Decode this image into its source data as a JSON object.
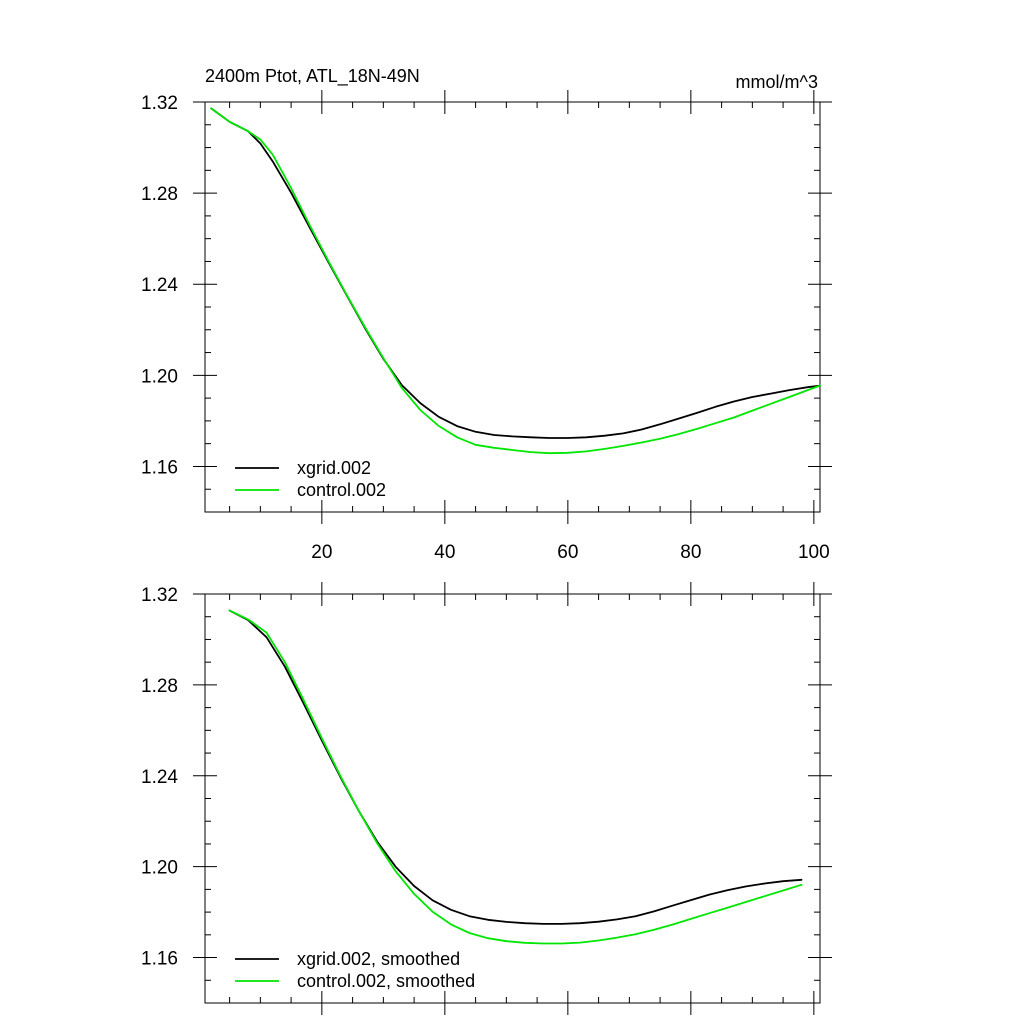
{
  "chart_data": [
    {
      "type": "line",
      "title": "2400m Ptot, ATL_18N-49N",
      "units": "mmol/m^3",
      "xlim": [
        1,
        101
      ],
      "ylim": [
        1.14,
        1.32
      ],
      "xticks": [
        20,
        40,
        60,
        80,
        100
      ],
      "xtick_labels": [
        "20",
        "40",
        "60",
        "80",
        "100"
      ],
      "yticks": [
        1.16,
        1.2,
        1.24,
        1.28,
        1.32
      ],
      "ytick_labels": [
        "1.16",
        "1.20",
        "1.24",
        "1.28",
        "1.32"
      ],
      "legend_position": "bottom-left",
      "series": [
        {
          "name": "xgrid.002",
          "color": "#000000",
          "x": [
            2,
            5,
            8,
            10,
            12,
            15,
            18,
            21,
            24,
            27,
            30,
            33,
            36,
            39,
            42,
            45,
            48,
            51,
            54,
            57,
            60,
            63,
            66,
            69,
            72,
            75,
            78,
            81,
            84,
            87,
            90,
            93,
            96,
            99,
            101
          ],
          "y": [
            1.3172,
            1.3113,
            1.3072,
            1.3018,
            1.294,
            1.2802,
            1.265,
            1.25,
            1.2353,
            1.2208,
            1.2072,
            1.1957,
            1.1878,
            1.1818,
            1.1777,
            1.1752,
            1.1738,
            1.1732,
            1.1728,
            1.1725,
            1.1725,
            1.1728,
            1.1735,
            1.1745,
            1.1762,
            1.1785,
            1.181,
            1.1835,
            1.1862,
            1.1885,
            1.1905,
            1.192,
            1.1935,
            1.1948,
            1.1955
          ]
        },
        {
          "name": "control.002",
          "color": "#00e600",
          "x": [
            2,
            5,
            8,
            10,
            12,
            15,
            18,
            21,
            24,
            27,
            30,
            33,
            36,
            39,
            42,
            45,
            48,
            51,
            54,
            57,
            60,
            63,
            66,
            69,
            72,
            75,
            78,
            81,
            84,
            87,
            90,
            93,
            96,
            99,
            101
          ],
          "y": [
            1.3172,
            1.3113,
            1.3072,
            1.3035,
            1.297,
            1.2822,
            1.266,
            1.2505,
            1.2355,
            1.2212,
            1.2075,
            1.1945,
            1.1848,
            1.1778,
            1.1728,
            1.1695,
            1.1682,
            1.1672,
            1.1663,
            1.1658,
            1.166,
            1.1666,
            1.1677,
            1.169,
            1.1705,
            1.1722,
            1.1742,
            1.1765,
            1.179,
            1.1815,
            1.1845,
            1.1875,
            1.1905,
            1.1935,
            1.1955
          ]
        }
      ]
    },
    {
      "type": "line",
      "title": "",
      "units": "",
      "xlim": [
        1,
        101
      ],
      "ylim": [
        1.14,
        1.32
      ],
      "xticks": [
        20,
        40,
        60,
        80,
        100
      ],
      "xtick_labels": [],
      "yticks": [
        1.16,
        1.2,
        1.24,
        1.28,
        1.32
      ],
      "ytick_labels": [
        "1.16",
        "1.20",
        "1.24",
        "1.28",
        "1.32"
      ],
      "legend_position": "bottom-left",
      "series": [
        {
          "name": "xgrid.002, smoothed",
          "color": "#000000",
          "x": [
            5,
            8,
            11,
            14,
            17,
            20,
            23,
            26,
            29,
            32,
            35,
            38,
            41,
            44,
            47,
            50,
            53,
            56,
            59,
            62,
            65,
            68,
            71,
            74,
            77,
            80,
            83,
            86,
            89,
            92,
            95,
            98
          ],
          "y": [
            1.3127,
            1.3085,
            1.301,
            1.288,
            1.272,
            1.2555,
            1.2395,
            1.2245,
            1.211,
            1.2,
            1.1915,
            1.1852,
            1.181,
            1.1782,
            1.1766,
            1.1757,
            1.1751,
            1.1748,
            1.1748,
            1.1751,
            1.1758,
            1.1768,
            1.1782,
            1.1803,
            1.1828,
            1.1853,
            1.1877,
            1.1897,
            1.1913,
            1.1926,
            1.1936,
            1.1942
          ]
        },
        {
          "name": "control.002, smoothed",
          "color": "#00e600",
          "x": [
            5,
            8,
            11,
            14,
            17,
            20,
            23,
            26,
            29,
            32,
            35,
            38,
            41,
            44,
            47,
            50,
            53,
            56,
            59,
            62,
            65,
            68,
            71,
            74,
            77,
            80,
            83,
            86,
            89,
            92,
            95,
            98
          ],
          "y": [
            1.3127,
            1.3088,
            1.303,
            1.29,
            1.2735,
            1.2565,
            1.24,
            1.2246,
            1.2103,
            1.198,
            1.188,
            1.1802,
            1.1746,
            1.1708,
            1.1685,
            1.1672,
            1.1665,
            1.1662,
            1.1662,
            1.1666,
            1.1675,
            1.1688,
            1.1703,
            1.1722,
            1.1745,
            1.177,
            1.1795,
            1.182,
            1.1845,
            1.187,
            1.1895,
            1.192
          ]
        }
      ]
    }
  ]
}
